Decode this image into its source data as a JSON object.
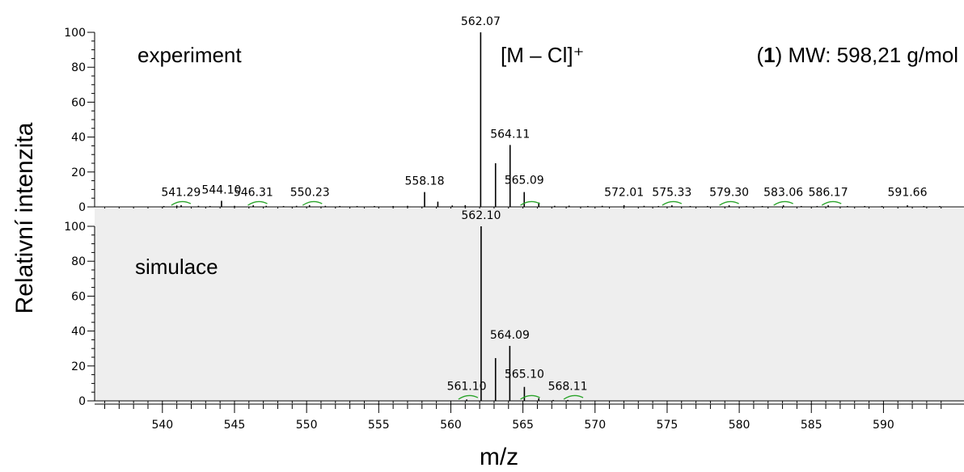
{
  "chart_data": {
    "type": "bar",
    "x_label": "m/z",
    "y_label": "Relativní intenzita",
    "annotation_ion": "[M – Cl]⁺",
    "annotation_mw_prefix": "(",
    "annotation_mw_bold": "1",
    "annotation_mw_suffix": ") MW: 598,21 g/mol",
    "x_ticks": [
      540,
      545,
      550,
      555,
      560,
      565,
      570,
      575,
      580,
      585,
      590
    ],
    "xlim": [
      535.3,
      594.8
    ],
    "ylim": [
      0,
      100
    ],
    "y_ticks": [
      0,
      20,
      40,
      60,
      80,
      100
    ],
    "panels": [
      {
        "name": "experiment",
        "background": "#ffffff",
        "peaks": [
          {
            "x": 540.1,
            "y": 0.5
          },
          {
            "x": 541.0,
            "y": 0.8
          },
          {
            "x": 541.3,
            "y": 1.0
          },
          {
            "x": 542.5,
            "y": 0.6
          },
          {
            "x": 543.3,
            "y": 0.5
          },
          {
            "x": 544.1,
            "y": 3.5
          },
          {
            "x": 545.0,
            "y": 0.6
          },
          {
            "x": 546.3,
            "y": 0.9
          },
          {
            "x": 547.2,
            "y": 0.6
          },
          {
            "x": 548.4,
            "y": 0.5
          },
          {
            "x": 549.3,
            "y": 0.6
          },
          {
            "x": 550.2,
            "y": 1.0
          },
          {
            "x": 551.3,
            "y": 0.6
          },
          {
            "x": 552.3,
            "y": 0.5
          },
          {
            "x": 553.5,
            "y": 0.5
          },
          {
            "x": 554.7,
            "y": 0.5
          },
          {
            "x": 556.0,
            "y": 0.5
          },
          {
            "x": 557.0,
            "y": 0.6
          },
          {
            "x": 558.18,
            "y": 8.5
          },
          {
            "x": 559.1,
            "y": 3.0
          },
          {
            "x": 560.1,
            "y": 0.8
          },
          {
            "x": 561.0,
            "y": 1.0
          },
          {
            "x": 562.07,
            "y": 100
          },
          {
            "x": 563.1,
            "y": 25
          },
          {
            "x": 564.11,
            "y": 35.5
          },
          {
            "x": 565.09,
            "y": 8.5
          },
          {
            "x": 566.1,
            "y": 2.5
          },
          {
            "x": 567.2,
            "y": 0.6
          },
          {
            "x": 568.2,
            "y": 0.7
          },
          {
            "x": 569.5,
            "y": 0.5
          },
          {
            "x": 570.5,
            "y": 0.6
          },
          {
            "x": 572.01,
            "y": 1.0
          },
          {
            "x": 573.4,
            "y": 0.6
          },
          {
            "x": 574.4,
            "y": 0.5
          },
          {
            "x": 575.33,
            "y": 0.9
          },
          {
            "x": 576.6,
            "y": 0.5
          },
          {
            "x": 577.8,
            "y": 0.5
          },
          {
            "x": 579.3,
            "y": 0.9
          },
          {
            "x": 580.5,
            "y": 0.5
          },
          {
            "x": 581.6,
            "y": 0.5
          },
          {
            "x": 583.06,
            "y": 0.9
          },
          {
            "x": 584.3,
            "y": 0.5
          },
          {
            "x": 585.4,
            "y": 0.5
          },
          {
            "x": 586.17,
            "y": 0.9
          },
          {
            "x": 587.5,
            "y": 0.5
          },
          {
            "x": 588.7,
            "y": 0.5
          },
          {
            "x": 589.9,
            "y": 0.5
          },
          {
            "x": 591.66,
            "y": 0.9
          },
          {
            "x": 592.8,
            "y": 0.5
          },
          {
            "x": 593.9,
            "y": 0.5
          }
        ],
        "labels": [
          {
            "text": "541.29",
            "x": 541.29,
            "y": 2
          },
          {
            "text": "544.10",
            "x": 544.1,
            "y": 3.5
          },
          {
            "text": "546.31",
            "x": 546.31,
            "y": 2
          },
          {
            "text": "550.23",
            "x": 550.23,
            "y": 2
          },
          {
            "text": "558.18",
            "x": 558.18,
            "y": 8.5
          },
          {
            "text": "562.07",
            "x": 562.07,
            "y": 100
          },
          {
            "text": "564.11",
            "x": 564.11,
            "y": 35.5
          },
          {
            "text": "565.09",
            "x": 565.09,
            "y": 9
          },
          {
            "text": "572.01",
            "x": 572.01,
            "y": 2
          },
          {
            "text": "575.33",
            "x": 575.33,
            "y": 2
          },
          {
            "text": "579.30",
            "x": 579.3,
            "y": 2
          },
          {
            "text": "583.06",
            "x": 583.06,
            "y": 2
          },
          {
            "text": "586.17",
            "x": 586.17,
            "y": 2
          },
          {
            "text": "591.66",
            "x": 591.66,
            "y": 2
          }
        ],
        "green_marks": [
          541.29,
          546.6,
          550.4,
          565.5,
          575.33,
          579.3,
          583.06,
          586.4
        ]
      },
      {
        "name": "simulace",
        "background": "#eeeeee",
        "peaks": [
          {
            "x": 561.1,
            "y": 0.8
          },
          {
            "x": 562.1,
            "y": 100
          },
          {
            "x": 563.1,
            "y": 24.5
          },
          {
            "x": 564.09,
            "y": 31.5
          },
          {
            "x": 565.1,
            "y": 8
          },
          {
            "x": 566.1,
            "y": 1.5
          },
          {
            "x": 567.1,
            "y": 0.5
          },
          {
            "x": 568.11,
            "y": 0.5
          }
        ],
        "labels": [
          {
            "text": "561.10",
            "x": 561.1,
            "y": 2
          },
          {
            "text": "562.10",
            "x": 562.1,
            "y": 100
          },
          {
            "text": "564.09",
            "x": 564.09,
            "y": 31.5
          },
          {
            "text": "565.10",
            "x": 565.1,
            "y": 9
          },
          {
            "text": "568.11",
            "x": 568.11,
            "y": 2
          }
        ],
        "green_marks": [
          561.2,
          565.5,
          568.5
        ]
      }
    ]
  }
}
